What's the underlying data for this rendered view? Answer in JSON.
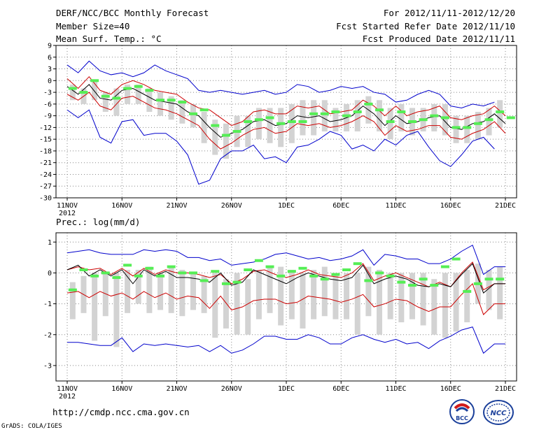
{
  "header": {
    "title": "DERF/NCC/BCC Monthly Forecast",
    "member": "Member Size=40",
    "variable": "Mean Surf. Temp.: °C",
    "period": "For 2012/11/11-2012/12/20",
    "refer": "Fcst Started Refer Date 2012/11/10",
    "produced": "Fcst Produced Date 2012/11/11"
  },
  "footer": {
    "url": "http://cmdp.ncc.cma.gov.cn",
    "grads": "GrADS: COLA/IGES",
    "logo_left_text": "BCC",
    "logo_right_text": "NCC"
  },
  "colors": {
    "box": "#d3d3d3",
    "median": "#55ee55",
    "mean": "#000000",
    "sigma": "#cc0000",
    "extreme": "#0000cc",
    "grid": "#888888"
  },
  "chart_data": [
    {
      "type": "line",
      "title": "Mean Surf. Temp.: °C",
      "xlabel": "",
      "ylabel": "",
      "xlim": [
        0,
        40
      ],
      "ylim": [
        -30,
        9
      ],
      "yticks": [
        9,
        6,
        3,
        0,
        -3,
        -6,
        -9,
        -12,
        -15,
        -18,
        -21,
        -24,
        -27,
        -30
      ],
      "xticks": [
        {
          "pos": 0,
          "label": "11NOV",
          "sub": "2012"
        },
        {
          "pos": 5,
          "label": "16NOV"
        },
        {
          "pos": 10,
          "label": "21NOV"
        },
        {
          "pos": 15,
          "label": "26NOV"
        },
        {
          "pos": 20,
          "label": "1DEC"
        },
        {
          "pos": 25,
          "label": "6DEC"
        },
        {
          "pos": 30,
          "label": "11DEC"
        },
        {
          "pos": 35,
          "label": "16DEC"
        },
        {
          "pos": 40,
          "label": "21DEC"
        }
      ],
      "series": [
        {
          "name": "max",
          "values": [
            4.0,
            2.0,
            5.0,
            2.5,
            1.5,
            2.0,
            1.0,
            2.0,
            4.0,
            2.5,
            1.5,
            0.5,
            -2.5,
            -3.0,
            -2.5,
            -3.0,
            -3.5,
            -3.0,
            -2.5,
            -3.5,
            -3.0,
            -1.0,
            -1.5,
            -3.0,
            -2.5,
            -1.5,
            -2.0,
            -1.5,
            -3.0,
            -3.5,
            -5.5,
            -5.0,
            -3.5,
            -2.5,
            -3.5,
            -6.5,
            -7.0,
            -6.0,
            -6.5,
            -5.5
          ]
        },
        {
          "name": "mean+sigma",
          "values": [
            0.5,
            -2.0,
            1.0,
            -2.5,
            -3.5,
            -1.0,
            0.0,
            -1.0,
            -2.5,
            -3.0,
            -3.5,
            -5.5,
            -7.0,
            -7.5,
            -9.5,
            -11.5,
            -10.5,
            -8.0,
            -7.5,
            -8.5,
            -8.5,
            -6.5,
            -7.0,
            -6.5,
            -8.5,
            -8.0,
            -7.5,
            -5.0,
            -6.5,
            -9.0,
            -6.5,
            -9.0,
            -8.0,
            -7.5,
            -6.5,
            -9.5,
            -10.0,
            -9.0,
            -8.5,
            -6.5,
            -9.0
          ]
        },
        {
          "name": "mean",
          "values": [
            -1.5,
            -3.5,
            -1.0,
            -4.5,
            -5.0,
            -2.5,
            -2.0,
            -3.5,
            -5.0,
            -5.5,
            -6.0,
            -8.0,
            -9.0,
            -12.0,
            -14.5,
            -13.5,
            -12.5,
            -10.5,
            -10.0,
            -11.5,
            -11.0,
            -9.0,
            -9.5,
            -9.0,
            -10.5,
            -10.0,
            -9.0,
            -6.5,
            -8.5,
            -11.5,
            -9.0,
            -11.0,
            -10.5,
            -9.5,
            -9.0,
            -12.0,
            -12.5,
            -11.0,
            -10.5,
            -8.5,
            -11.0
          ]
        },
        {
          "name": "mean-sigma",
          "values": [
            -3.5,
            -5.0,
            -3.0,
            -6.5,
            -7.5,
            -4.5,
            -4.0,
            -5.5,
            -7.0,
            -7.5,
            -8.5,
            -10.0,
            -11.5,
            -15.0,
            -17.5,
            -16.0,
            -14.0,
            -12.5,
            -12.0,
            -13.5,
            -13.0,
            -11.0,
            -11.5,
            -11.0,
            -12.0,
            -11.5,
            -10.5,
            -9.0,
            -10.5,
            -14.0,
            -11.5,
            -13.0,
            -12.5,
            -11.5,
            -11.5,
            -14.5,
            -15.0,
            -13.5,
            -12.5,
            -10.5,
            -13.5
          ]
        },
        {
          "name": "min",
          "values": [
            -7.5,
            -9.5,
            -7.5,
            -14.5,
            -16.0,
            -10.5,
            -10.0,
            -14.0,
            -13.5,
            -13.5,
            -15.5,
            -19.0,
            -26.5,
            -25.5,
            -20.0,
            -18.0,
            -18.0,
            -16.5,
            -20.0,
            -19.5,
            -21.0,
            -17.0,
            -16.5,
            -15.0,
            -13.0,
            -14.0,
            -17.5,
            -16.5,
            -18.0,
            -15.0,
            -16.5,
            -14.0,
            -13.0,
            -17.0,
            -20.5,
            -22.0,
            -19.0,
            -15.5,
            -14.5,
            -17.5
          ]
        },
        {
          "name": "box_top",
          "values": [
            -1,
            -2,
            0,
            -3,
            -2,
            -1,
            -1,
            -2,
            -3,
            -4,
            -5,
            -6,
            -8,
            -10,
            -11,
            -9,
            -9,
            -7,
            -7,
            -7,
            -6,
            -5,
            -5,
            -5,
            -7,
            -6,
            -5,
            -4,
            -5,
            -7,
            -6,
            -7,
            -7,
            -6,
            -6,
            -9,
            -9,
            -8,
            -7,
            -5
          ]
        },
        {
          "name": "box_bottom",
          "values": [
            -5,
            -6,
            -5,
            -8,
            -9,
            -6,
            -6,
            -8,
            -9,
            -10,
            -11,
            -12,
            -16,
            -19,
            -20,
            -17,
            -17,
            -15,
            -16,
            -17,
            -16,
            -14,
            -14,
            -13,
            -13,
            -13,
            -13,
            -11,
            -13,
            -15,
            -13,
            -14,
            -13,
            -13,
            -14,
            -16,
            -16,
            -15,
            -14,
            -12
          ]
        },
        {
          "name": "median",
          "values": [
            -2.0,
            -3.0,
            0.0,
            -4.0,
            -4.5,
            -2.0,
            -1.5,
            -2.5,
            -5.0,
            -5.0,
            -5.5,
            -8.5,
            -7.5,
            -11.5,
            -14.0,
            -13.0,
            -10.5,
            -10.0,
            -9.5,
            -11.0,
            -10.5,
            -10.5,
            -8.5,
            -8.5,
            -8.0,
            -9.0,
            -8.0,
            -6.0,
            -7.5,
            -10.5,
            -8.0,
            -10.5,
            -10.0,
            -9.0,
            -9.5,
            -12.0,
            -12.0,
            -11.0,
            -10.0,
            -8.0,
            -9.5
          ]
        }
      ]
    },
    {
      "type": "line",
      "title": "Prec.: log(mm/d)",
      "xlabel": "",
      "ylabel": "",
      "xlim": [
        0,
        40
      ],
      "ylim": [
        -3.5,
        1.3
      ],
      "yticks": [
        1,
        0,
        -1,
        -2,
        -3
      ],
      "xticks": [
        {
          "pos": 0,
          "label": "11NOV",
          "sub": "2012"
        },
        {
          "pos": 5,
          "label": "16NOV"
        },
        {
          "pos": 10,
          "label": "21NOV"
        },
        {
          "pos": 15,
          "label": "26NOV"
        },
        {
          "pos": 20,
          "label": "1DEC"
        },
        {
          "pos": 25,
          "label": "6DEC"
        },
        {
          "pos": 30,
          "label": "11DEC"
        },
        {
          "pos": 35,
          "label": "16DEC"
        },
        {
          "pos": 40,
          "label": "21DEC"
        }
      ],
      "series": [
        {
          "name": "max",
          "values": [
            0.65,
            0.7,
            0.75,
            0.65,
            0.6,
            0.6,
            0.6,
            0.75,
            0.7,
            0.75,
            0.7,
            0.5,
            0.5,
            0.4,
            0.45,
            0.25,
            0.3,
            0.35,
            0.45,
            0.6,
            0.65,
            0.55,
            0.45,
            0.5,
            0.4,
            0.45,
            0.55,
            0.75,
            0.25,
            0.6,
            0.55,
            0.45,
            0.45,
            0.3,
            0.3,
            0.45,
            0.7,
            0.9,
            -0.05,
            0.2,
            0.2
          ]
        },
        {
          "name": "mean+sigma",
          "values": [
            0.1,
            0.2,
            0.1,
            0.15,
            -0.05,
            0.15,
            -0.1,
            0.15,
            -0.05,
            0.1,
            0.0,
            0.0,
            -0.05,
            -0.15,
            -0.05,
            -0.35,
            -0.2,
            0.05,
            0.1,
            -0.05,
            -0.15,
            -0.05,
            0.1,
            -0.05,
            -0.1,
            -0.15,
            0.0,
            0.3,
            -0.25,
            -0.1,
            0.0,
            -0.15,
            -0.3,
            -0.45,
            -0.3,
            -0.45,
            0.0,
            0.35,
            -0.55,
            -0.35,
            -0.35
          ]
        },
        {
          "name": "mean",
          "values": [
            0.1,
            0.25,
            -0.1,
            0.1,
            -0.1,
            0.1,
            -0.35,
            0.1,
            -0.1,
            0.05,
            -0.15,
            -0.15,
            -0.2,
            -0.3,
            0.0,
            -0.4,
            -0.3,
            0.1,
            -0.05,
            -0.2,
            -0.35,
            -0.15,
            0.0,
            -0.1,
            -0.2,
            -0.25,
            -0.15,
            0.25,
            -0.35,
            -0.2,
            -0.1,
            -0.2,
            -0.4,
            -0.45,
            -0.35,
            -0.45,
            -0.05,
            0.3,
            -0.65,
            -0.35,
            -0.35
          ]
        },
        {
          "name": "mean-sigma",
          "values": [
            -0.65,
            -0.6,
            -0.8,
            -0.6,
            -0.75,
            -0.65,
            -0.85,
            -0.6,
            -0.8,
            -0.65,
            -0.85,
            -0.75,
            -0.8,
            -1.15,
            -0.75,
            -1.2,
            -1.1,
            -0.9,
            -0.85,
            -0.85,
            -1.0,
            -0.95,
            -0.75,
            -0.8,
            -0.85,
            -0.95,
            -0.85,
            -0.7,
            -1.1,
            -1.0,
            -0.85,
            -0.9,
            -1.1,
            -1.25,
            -1.1,
            -1.1,
            -0.7,
            -0.35,
            -1.35,
            -1.0,
            -1.0
          ]
        },
        {
          "name": "min",
          "values": [
            -2.25,
            -2.25,
            -2.3,
            -2.35,
            -2.35,
            -2.1,
            -2.55,
            -2.3,
            -2.35,
            -2.3,
            -2.35,
            -2.4,
            -2.35,
            -2.55,
            -2.35,
            -2.6,
            -2.5,
            -2.3,
            -2.05,
            -2.05,
            -2.15,
            -2.15,
            -2.0,
            -2.1,
            -2.3,
            -2.3,
            -2.1,
            -2.0,
            -2.15,
            -2.25,
            -2.15,
            -2.3,
            -2.25,
            -2.45,
            -2.2,
            -2.05,
            -1.85,
            -1.75,
            -2.6,
            -2.3,
            -2.3
          ]
        },
        {
          "name": "box_top",
          "values": [
            -0.3,
            -0.1,
            0.0,
            0.0,
            0.0,
            0.1,
            0.1,
            0.2,
            0.0,
            0.2,
            0.1,
            0.0,
            -0.1,
            0.0,
            -0.2,
            0.0,
            -0.2,
            0.1,
            0.2,
            0.2,
            0.1,
            0.0,
            0.1,
            0.2,
            0.0,
            0.0,
            0.0,
            0.2,
            0.1,
            0.0,
            0.0,
            0.0,
            0.0,
            -0.2,
            0.0,
            0.0,
            0.1,
            0.3,
            0.1,
            0.2
          ]
        },
        {
          "name": "box_bottom",
          "values": [
            -1.5,
            -1.3,
            -2.2,
            -1.4,
            -2.4,
            -1.3,
            -1.0,
            -1.3,
            -1.2,
            -1.3,
            -1.4,
            -1.2,
            -1.3,
            -2.1,
            -1.8,
            -2.0,
            -2.0,
            -1.5,
            -1.3,
            -1.7,
            -1.5,
            -1.8,
            -1.5,
            -1.4,
            -1.5,
            -1.5,
            -2.0,
            -1.4,
            -2.0,
            -1.5,
            -1.6,
            -1.5,
            -1.7,
            -2.0,
            -2.1,
            -1.9,
            -1.6,
            -1.0,
            -1.2,
            -1.5
          ]
        },
        {
          "name": "median",
          "values": [
            -0.55,
            0.1,
            -0.1,
            0.0,
            -0.15,
            0.25,
            -0.1,
            0.15,
            -0.1,
            0.2,
            0.0,
            0.0,
            -0.25,
            0.05,
            -0.35,
            -0.3,
            0.1,
            0.4,
            0.2,
            -0.1,
            0.05,
            0.15,
            -0.1,
            -0.2,
            -0.05,
            0.1,
            0.3,
            -0.25,
            0.0,
            -0.1,
            -0.3,
            -0.4,
            -0.2,
            -0.4,
            0.2,
            0.45,
            -0.6,
            -0.35,
            -0.2,
            -0.2
          ]
        }
      ]
    }
  ]
}
